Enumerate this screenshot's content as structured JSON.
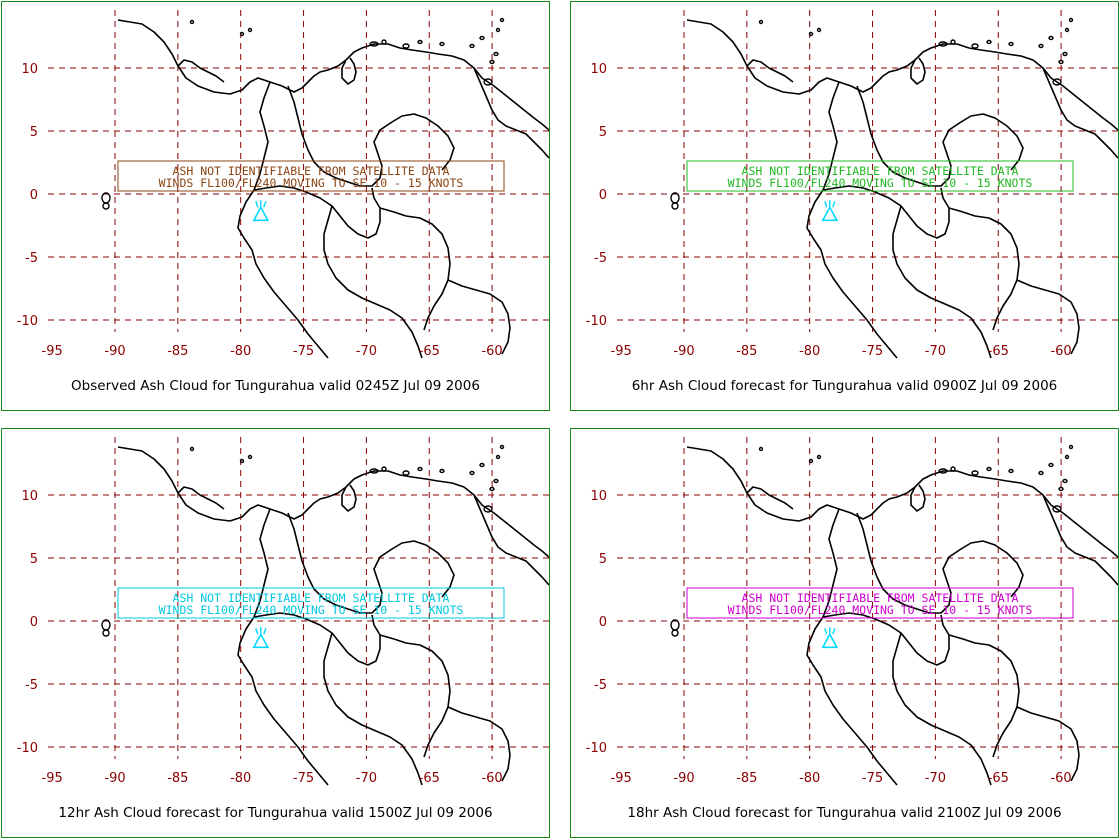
{
  "map": {
    "x_ticks": [
      "-95",
      "-90",
      "-85",
      "-80",
      "-75",
      "-70",
      "-65",
      "-60"
    ],
    "y_ticks": [
      "10",
      "5",
      "0",
      "-5",
      "-10"
    ],
    "volcano_color": "#00d8ff",
    "grid_color": "#8b0000",
    "border_color": "#1a8a1a"
  },
  "panels": [
    {
      "caption": "Observed Ash Cloud for Tungurahua valid 0245Z Jul 09 2006",
      "color": "#8b4513",
      "msg_line1": "ASH NOT IDENTIFIABLE FROM SATELLITE DATA",
      "msg_line2": "WINDS FL100/FL240 MOVING TO SE 10 - 15 KNOTS"
    },
    {
      "caption": "6hr Ash Cloud forecast for Tungurahua valid 0900Z Jul 09 2006",
      "color": "#22b822",
      "msg_line1": "ASH NOT IDENTIFIABLE FROM SATELLITE DATA",
      "msg_line2": "WINDS FL100/FL240 MOVING TO SE 10 - 15 KNOTS"
    },
    {
      "caption": "12hr Ash Cloud forecast for Tungurahua valid 1500Z Jul 09 2006",
      "color": "#00c8e0",
      "msg_line1": "ASH NOT IDENTIFIABLE FROM SATELLITE DATA",
      "msg_line2": "WINDS FL100/FL240 MOVING TO SE 10 - 15 KNOTS"
    },
    {
      "caption": "18hr Ash Cloud forecast for Tungurahua valid 2100Z Jul 09 2006",
      "color": "#cc00cc",
      "msg_line1": "ASH NOT IDENTIFIABLE FROM SATELLITE DATA",
      "msg_line2": "WINDS FL100/FL240 MOVING TO SE 10 - 15 KNOTS"
    }
  ]
}
